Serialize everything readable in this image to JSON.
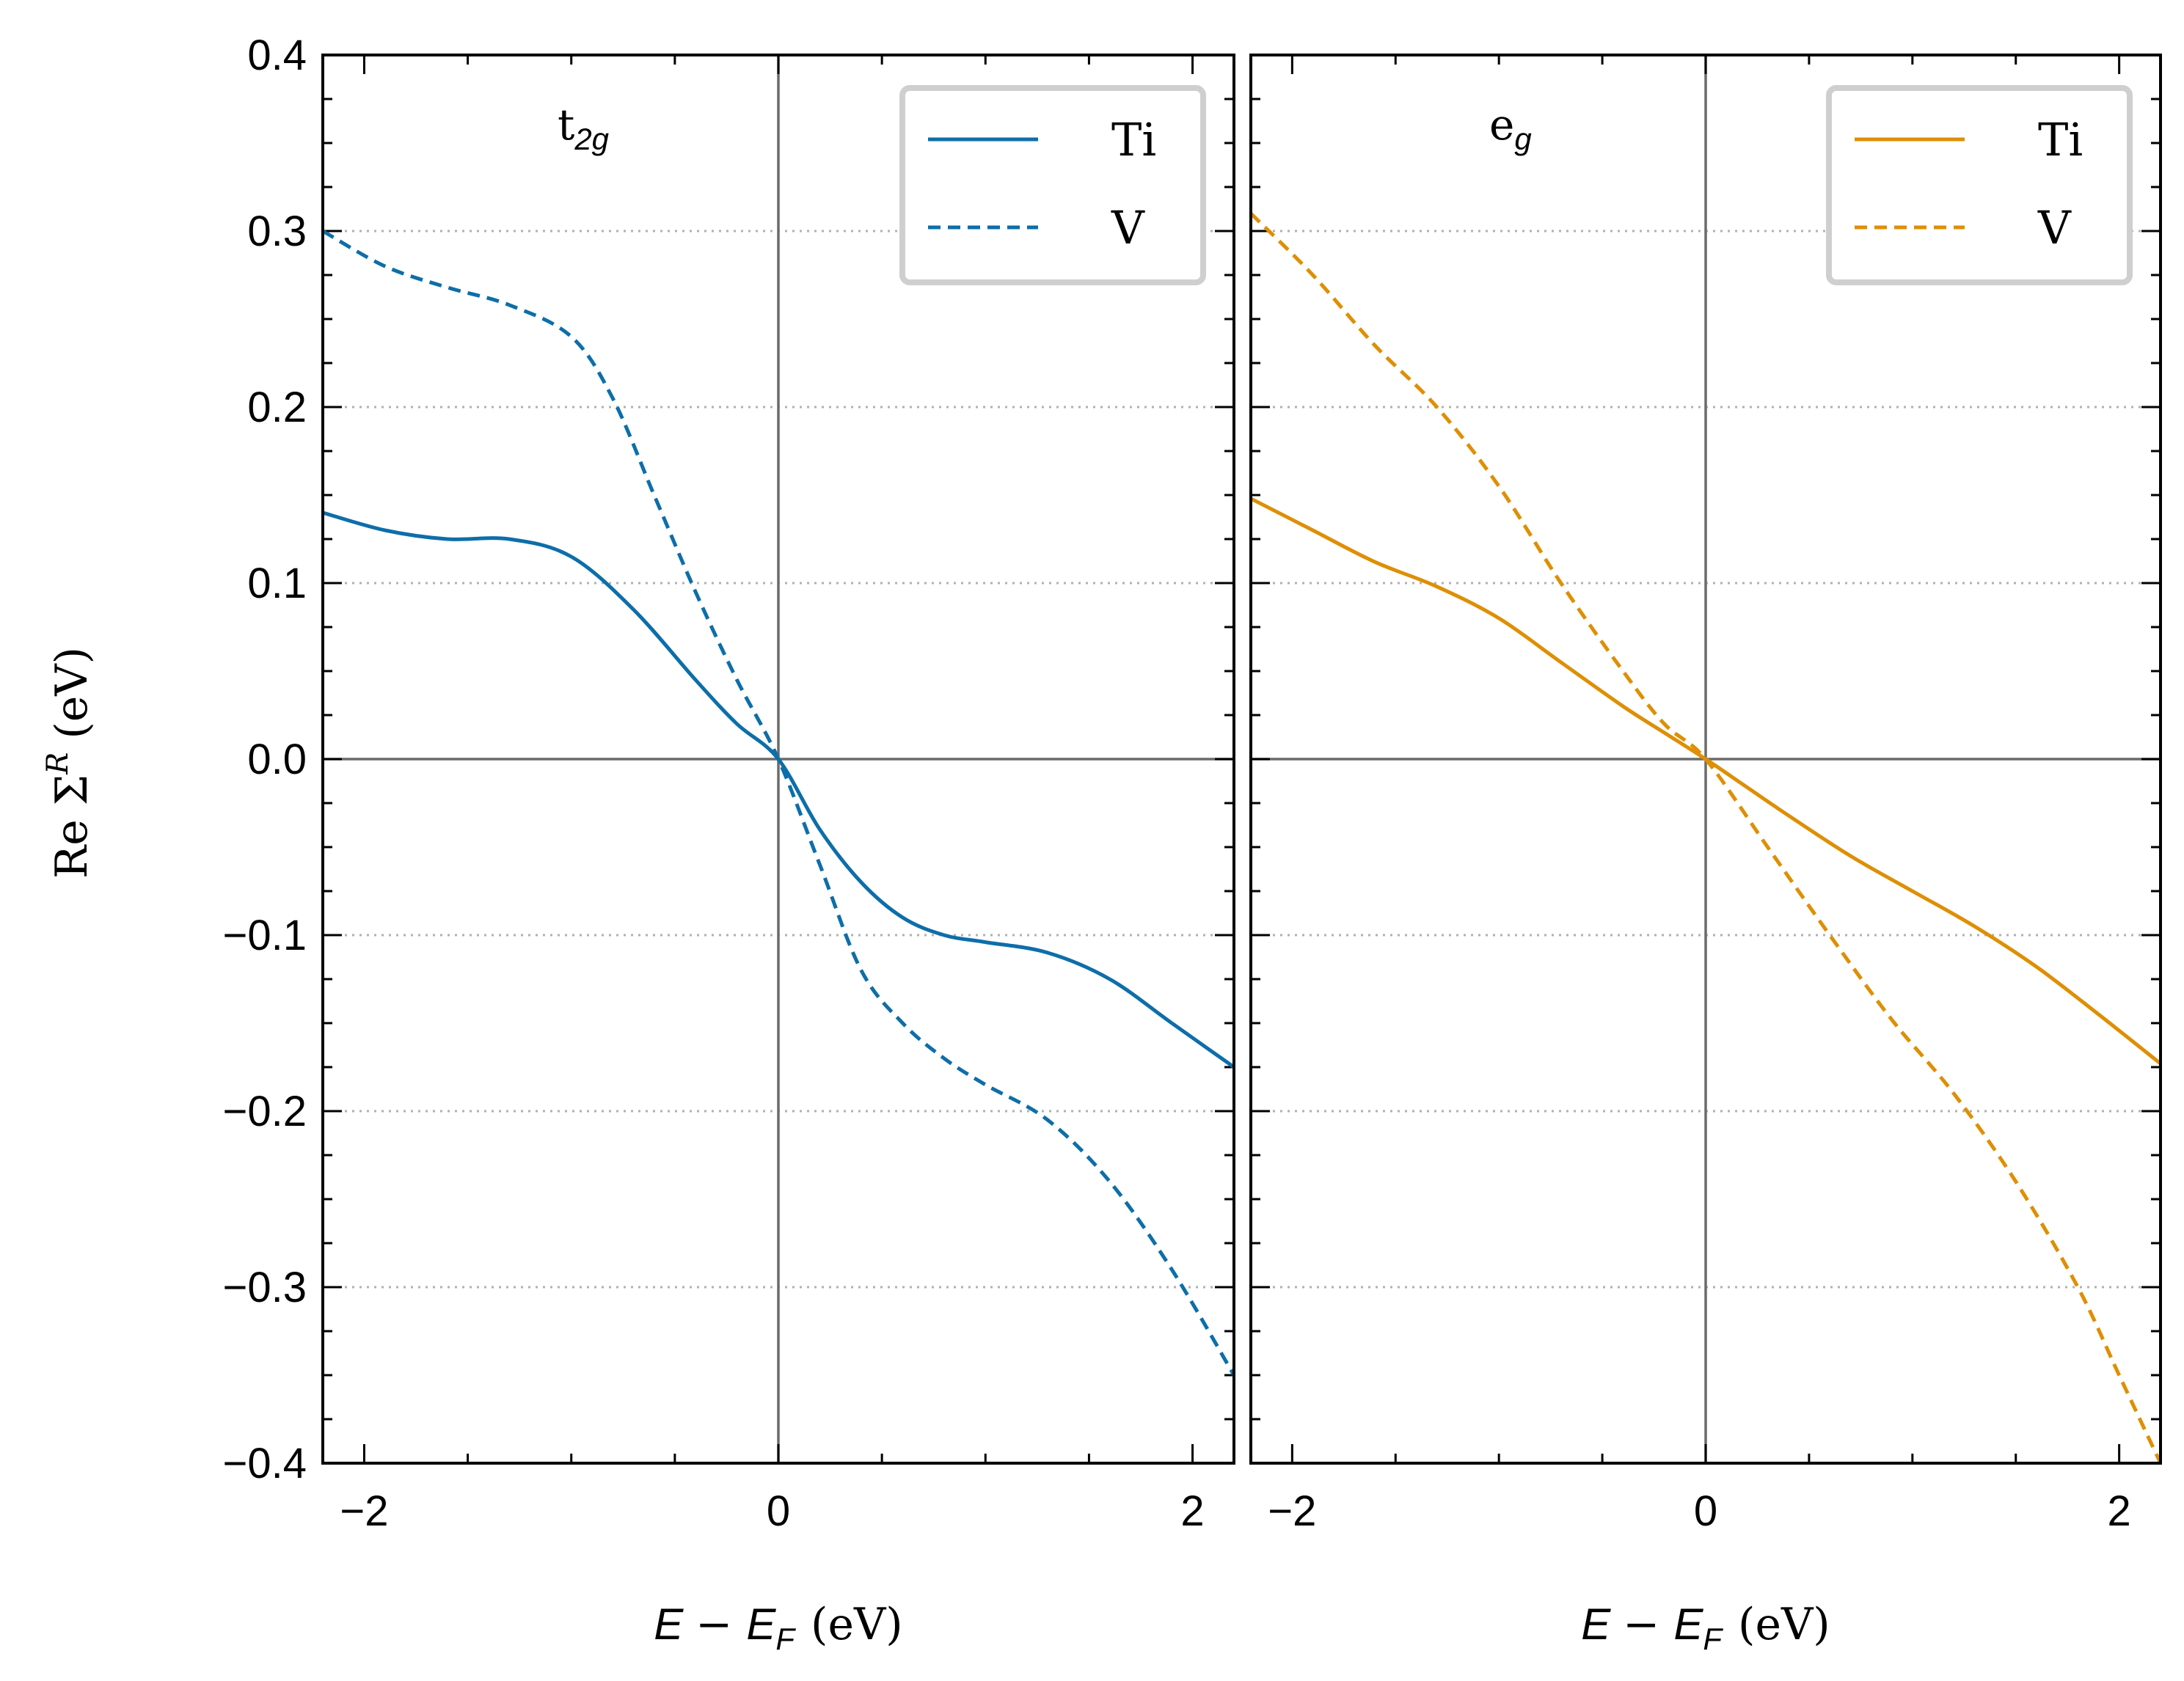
{
  "chart_data": [
    {
      "type": "line",
      "panel_label": "t",
      "panel_label_sub": "2g",
      "xlabel": "E − E_F (eV)",
      "xlabel_parts": {
        "var": "E",
        "minus": "−",
        "sub_var": "E",
        "sub": "F",
        "unit": "(eV)"
      },
      "ylabel": "Re Σ^R (eV)",
      "ylabel_parts": {
        "prefix": "Re Σ",
        "sup": "R",
        "unit": "(eV)"
      },
      "xlim": [
        -2.2,
        2.2
      ],
      "ylim": [
        -0.4,
        0.4
      ],
      "xticks": [
        -2,
        0,
        2
      ],
      "xtick_labels": [
        "−2",
        "0",
        "2"
      ],
      "yticks": [
        -0.4,
        -0.3,
        -0.2,
        -0.1,
        0.0,
        0.1,
        0.2,
        0.3,
        0.4
      ],
      "ytick_labels": [
        "−0.4",
        "−0.3",
        "−0.2",
        "−0.1",
        "0.0",
        "0.1",
        "0.2",
        "0.3",
        "0.4"
      ],
      "grid": "horizontal dotted",
      "legend_position": "top-right",
      "series": [
        {
          "name": "Ti",
          "style": "solid",
          "color": "#0d6ea9",
          "x": [
            -2.2,
            -1.9,
            -1.6,
            -1.3,
            -1.0,
            -0.7,
            -0.4,
            -0.2,
            0.0,
            0.2,
            0.4,
            0.6,
            0.8,
            1.0,
            1.3,
            1.6,
            1.9,
            2.2
          ],
          "y": [
            0.14,
            0.13,
            0.125,
            0.125,
            0.115,
            0.085,
            0.045,
            0.02,
            0.0,
            -0.04,
            -0.07,
            -0.09,
            -0.1,
            -0.104,
            -0.11,
            -0.125,
            -0.15,
            -0.175
          ]
        },
        {
          "name": "V",
          "style": "dashed",
          "color": "#0d6ea9",
          "x": [
            -2.2,
            -1.9,
            -1.6,
            -1.3,
            -1.0,
            -0.8,
            -0.6,
            -0.4,
            -0.2,
            0.0,
            0.2,
            0.4,
            0.6,
            0.8,
            1.0,
            1.3,
            1.6,
            1.9,
            2.2
          ],
          "y": [
            0.3,
            0.28,
            0.268,
            0.258,
            0.24,
            0.205,
            0.15,
            0.095,
            0.045,
            0.0,
            -0.06,
            -0.12,
            -0.15,
            -0.17,
            -0.185,
            -0.205,
            -0.24,
            -0.29,
            -0.35
          ]
        }
      ]
    },
    {
      "type": "line",
      "panel_label": "e",
      "panel_label_sub": "g",
      "xlabel": "E − E_F (eV)",
      "xlabel_parts": {
        "var": "E",
        "minus": "−",
        "sub_var": "E",
        "sub": "F",
        "unit": "(eV)"
      },
      "xlim": [
        -2.2,
        2.2
      ],
      "ylim": [
        -0.4,
        0.4
      ],
      "xticks": [
        -2,
        0,
        2
      ],
      "xtick_labels": [
        "−2",
        "0",
        "2"
      ],
      "yticks": [
        -0.4,
        -0.3,
        -0.2,
        -0.1,
        0.0,
        0.1,
        0.2,
        0.3,
        0.4
      ],
      "grid": "horizontal dotted",
      "legend_position": "top-right",
      "series": [
        {
          "name": "Ti",
          "style": "solid",
          "color": "#de8f05",
          "x": [
            -2.2,
            -1.9,
            -1.6,
            -1.3,
            -1.0,
            -0.7,
            -0.4,
            -0.2,
            0.0,
            0.2,
            0.4,
            0.7,
            1.0,
            1.3,
            1.6,
            1.9,
            2.2
          ],
          "y": [
            0.148,
            0.13,
            0.112,
            0.098,
            0.08,
            0.055,
            0.03,
            0.015,
            0.0,
            -0.016,
            -0.032,
            -0.055,
            -0.075,
            -0.095,
            -0.118,
            -0.145,
            -0.173
          ]
        },
        {
          "name": "V",
          "style": "dashed",
          "color": "#de8f05",
          "x": [
            -2.2,
            -1.9,
            -1.6,
            -1.3,
            -1.0,
            -0.7,
            -0.4,
            -0.2,
            0.0,
            0.3,
            0.6,
            0.9,
            1.2,
            1.5,
            1.8,
            2.0,
            2.2
          ],
          "y": [
            0.31,
            0.275,
            0.235,
            0.2,
            0.155,
            0.1,
            0.05,
            0.02,
            0.0,
            -0.05,
            -0.1,
            -0.148,
            -0.19,
            -0.24,
            -0.3,
            -0.35,
            -0.4
          ]
        }
      ]
    }
  ]
}
